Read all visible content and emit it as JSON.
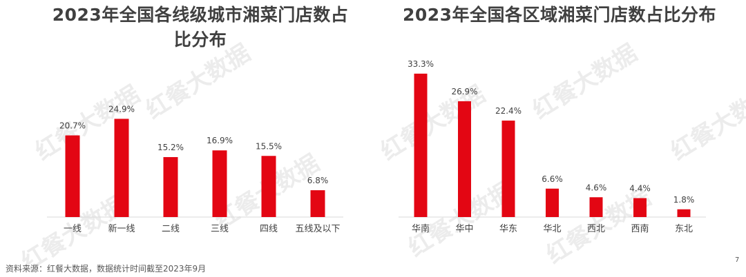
{
  "watermark": "红餐大数据",
  "source": "资料来源：红餐大数据，数据统计时间截至2023年9月",
  "page_number": "7",
  "colors": {
    "bar": "#e30613",
    "axis": "#d9d9d9",
    "text": "#404040",
    "watermark": "#ececec"
  },
  "chart_data": [
    {
      "type": "bar",
      "title": "2023年全国各线级城市湘菜门店数占比分布",
      "categories": [
        "一线",
        "新一线",
        "二线",
        "三线",
        "四线",
        "五线及以下"
      ],
      "values": [
        20.7,
        24.9,
        15.2,
        16.9,
        15.5,
        6.8
      ],
      "labels": [
        "20.7%",
        "24.9%",
        "15.2%",
        "16.9%",
        "15.5%",
        "6.8%"
      ],
      "unit": "%",
      "ylim": [
        0,
        40
      ],
      "grid": false,
      "legend": false
    },
    {
      "type": "bar",
      "title": "2023年全国各区域湘菜门店数占比分布",
      "categories": [
        "华南",
        "华中",
        "华东",
        "华北",
        "西北",
        "西南",
        "东北"
      ],
      "values": [
        33.3,
        26.9,
        22.4,
        6.6,
        4.6,
        4.4,
        1.8
      ],
      "labels": [
        "33.3%",
        "26.9%",
        "22.4%",
        "6.6%",
        "4.6%",
        "4.4%",
        "1.8%"
      ],
      "unit": "%",
      "ylim": [
        0,
        40
      ],
      "grid": false,
      "legend": false
    }
  ]
}
